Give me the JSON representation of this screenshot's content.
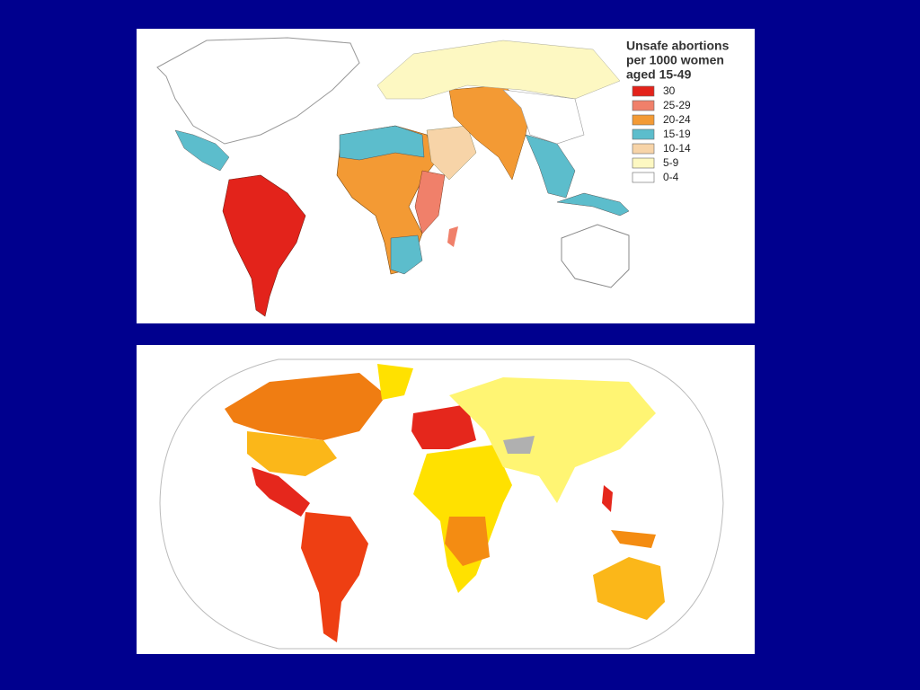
{
  "legend": {
    "title_lines": [
      "Unsafe abortions",
      "per 1000 women",
      "aged 15-49"
    ],
    "items": [
      {
        "label": "30",
        "color": "#e3231b"
      },
      {
        "label": "25-29",
        "color": "#f0806a"
      },
      {
        "label": "20-24",
        "color": "#f39a34"
      },
      {
        "label": "15-19",
        "color": "#5cbdcc"
      },
      {
        "label": "10-14",
        "color": "#f7d4a8"
      },
      {
        "label": "5-9",
        "color": "#fdf8c2"
      },
      {
        "label": "0-4",
        "color": "#ffffff"
      }
    ]
  }
}
